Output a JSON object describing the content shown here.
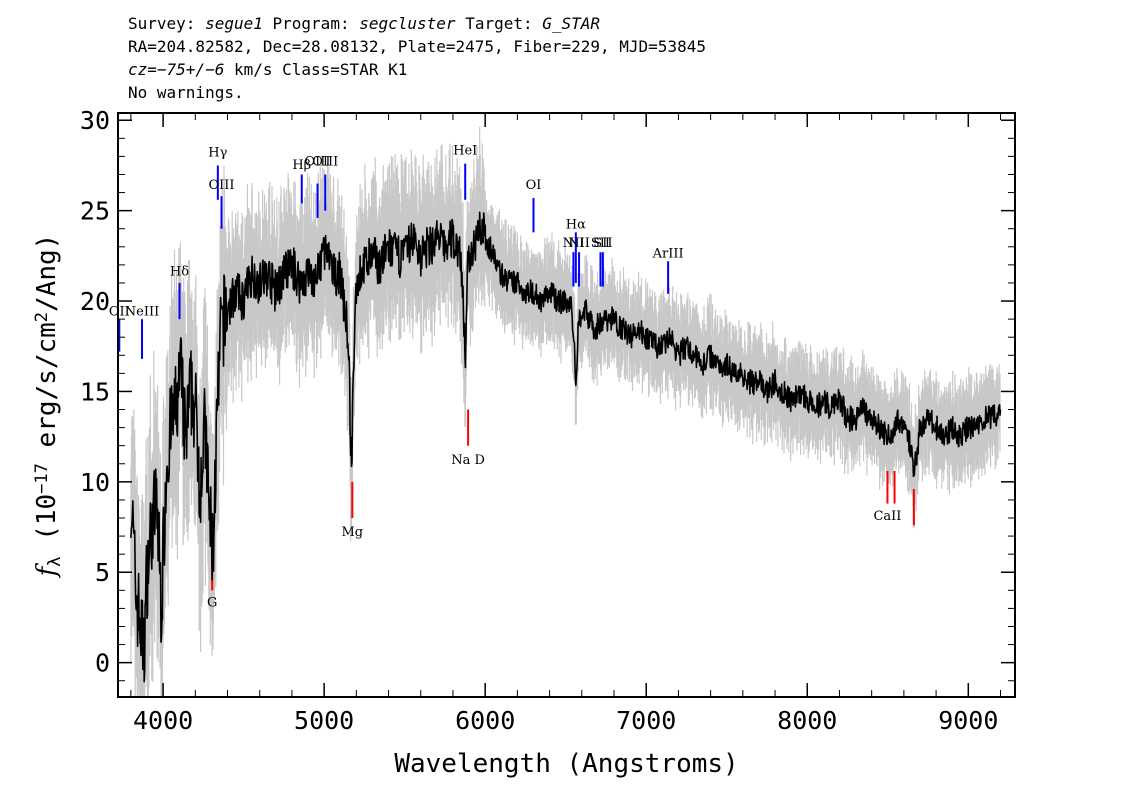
{
  "header": {
    "line1": {
      "survey_label": "Survey:",
      "survey": "segue1",
      "program_label": "Program:",
      "program": "segcluster",
      "target_label": "Target:",
      "target": "G_STAR"
    },
    "line2": "RA=204.82582, Dec=28.08132, Plate=2475, Fiber=229, MJD=53845",
    "line3": {
      "cz_label": "cz",
      "cz_value": "=−75+/−6",
      "cz_rest": " km/s Class=STAR K1"
    },
    "line4": "No warnings."
  },
  "chart_data": {
    "type": "line",
    "title": "",
    "xlabel": "Wavelength (Angstroms)",
    "ylabel_main": "f",
    "ylabel_sub": "λ",
    "ylabel_rest_1": " (10",
    "ylabel_exp": "−17",
    "ylabel_rest_2": " erg/s/cm",
    "ylabel_exp2": "2",
    "ylabel_rest_3": "/Ang)",
    "xlim": [
      3720,
      9290
    ],
    "ylim": [
      -1.9,
      30.4
    ],
    "x_ticks": [
      4000,
      5000,
      6000,
      7000,
      8000,
      9000
    ],
    "x_tick_labels": [
      "4000",
      "5000",
      "6000",
      "7000",
      "8000",
      "9000"
    ],
    "y_ticks": [
      0,
      5,
      10,
      15,
      20,
      25,
      30
    ],
    "y_tick_labels": [
      "0",
      "5",
      "10",
      "15",
      "20",
      "25",
      "30"
    ],
    "colors": {
      "flux": "#000000",
      "error_band": "#c8c8c8",
      "emission": "#0000ff",
      "absorption": "#ff0000"
    },
    "series": [
      {
        "x": [
          3800,
          3830,
          3860,
          3880,
          3900,
          3930,
          3960,
          3990,
          4020,
          4050,
          4080,
          4110,
          4140,
          4170,
          4200,
          4230,
          4260,
          4290,
          4310,
          4330,
          4360,
          4400,
          4450,
          4500,
          4550,
          4600,
          4650,
          4700,
          4750,
          4800,
          4850,
          4900,
          4950,
          5000,
          5050,
          5100,
          5150,
          5170,
          5185,
          5200,
          5250,
          5300,
          5350,
          5400,
          5450,
          5500,
          5550,
          5600,
          5650,
          5700,
          5750,
          5800,
          5850,
          5880,
          5892,
          5905,
          5930,
          5960,
          6000,
          6050,
          6100,
          6150,
          6200,
          6250,
          6300,
          6350,
          6400,
          6450,
          6500,
          6540,
          6563,
          6580,
          6620,
          6680,
          6750,
          6800,
          6850,
          6900,
          6950,
          7000,
          7050,
          7100,
          7150,
          7200,
          7250,
          7300,
          7350,
          7400,
          7450,
          7500,
          7550,
          7600,
          7650,
          7700,
          7750,
          7800,
          7850,
          7900,
          7950,
          8000,
          8050,
          8100,
          8150,
          8200,
          8250,
          8300,
          8350,
          8400,
          8450,
          8498,
          8542,
          8580,
          8620,
          8662,
          8700,
          8750,
          8800,
          8850,
          8900,
          8950,
          9000,
          9050,
          9100,
          9150,
          9200
        ],
        "y": [
          9.5,
          4.0,
          2.0,
          0.5,
          5.0,
          7.5,
          9.0,
          3.0,
          11.0,
          13.0,
          14.0,
          16.0,
          12.0,
          15.0,
          14.0,
          10.0,
          13.0,
          8.0,
          6.0,
          12.0,
          18.5,
          19.5,
          20.5,
          20.0,
          21.5,
          21.0,
          21.5,
          20.5,
          21.5,
          22.0,
          21.0,
          21.5,
          21.0,
          23.0,
          21.5,
          21.5,
          18.0,
          10.5,
          17.0,
          21.0,
          22.0,
          22.5,
          22.0,
          23.0,
          22.5,
          22.5,
          23.5,
          22.5,
          23.0,
          23.5,
          23.0,
          23.5,
          22.5,
          16.5,
          22.0,
          22.5,
          23.0,
          24.5,
          23.5,
          22.5,
          21.5,
          21.0,
          21.0,
          20.5,
          20.5,
          20.0,
          20.5,
          20.0,
          20.0,
          19.5,
          15.5,
          19.0,
          19.5,
          18.5,
          19.0,
          19.0,
          18.5,
          18.0,
          18.5,
          18.0,
          17.5,
          17.5,
          18.0,
          17.0,
          17.5,
          17.0,
          16.5,
          17.0,
          16.5,
          16.5,
          16.0,
          16.0,
          15.5,
          15.5,
          15.0,
          15.5,
          15.0,
          14.5,
          15.0,
          14.5,
          14.0,
          14.5,
          14.0,
          14.5,
          13.5,
          13.5,
          14.0,
          13.5,
          13.0,
          12.5,
          13.0,
          13.5,
          13.0,
          10.5,
          13.0,
          13.5,
          13.0,
          12.5,
          13.0,
          12.5,
          13.0,
          13.0,
          13.5,
          13.5,
          14.0
        ]
      }
    ],
    "line_markers": [
      {
        "label": "OII",
        "wave": 3728,
        "y0": 17.2,
        "y1": 19.0,
        "kind": "emission",
        "label_y": 19.2
      },
      {
        "label": "NeIII",
        "wave": 3869,
        "y0": 16.8,
        "y1": 19.0,
        "kind": "emission",
        "label_y": 19.2
      },
      {
        "label": "Hδ",
        "wave": 4102,
        "y0": 19.0,
        "y1": 21.0,
        "kind": "emission",
        "label_y": 21.4
      },
      {
        "label": "Hγ",
        "wave": 4340,
        "y0": 25.6,
        "y1": 27.5,
        "kind": "emission",
        "label_y": 28.0
      },
      {
        "label": "OIII",
        "wave": 4363,
        "y0": 24.0,
        "y1": 25.8,
        "kind": "emission",
        "label_y": 26.2
      },
      {
        "label": "Hβ",
        "wave": 4861,
        "y0": 25.4,
        "y1": 27.0,
        "kind": "emission",
        "label_y": 27.3
      },
      {
        "label": "OIII",
        "wave": 4959,
        "y0": 24.6,
        "y1": 26.5,
        "kind": "emission",
        "label_y": 27.5
      },
      {
        "label": "OIII",
        "wave": 5007,
        "y0": 25.0,
        "y1": 27.0,
        "kind": "emission",
        "label_y": 27.5
      },
      {
        "label": "HeI",
        "wave": 5876,
        "y0": 25.6,
        "y1": 27.6,
        "kind": "emission",
        "label_y": 28.1
      },
      {
        "label": "OI",
        "wave": 6300,
        "y0": 23.8,
        "y1": 25.7,
        "kind": "emission",
        "label_y": 26.2
      },
      {
        "label": "NII",
        "wave": 6548,
        "y0": 20.8,
        "y1": 22.7,
        "kind": "emission",
        "label_y": 23.0
      },
      {
        "label": "Hα",
        "wave": 6563,
        "y0": 21.0,
        "y1": 23.8,
        "kind": "emission",
        "label_y": 24.0
      },
      {
        "label": "NII",
        "wave": 6583,
        "y0": 20.8,
        "y1": 22.7,
        "kind": "emission",
        "label_y": 23.0
      },
      {
        "label": "SII",
        "wave": 6716,
        "y0": 20.8,
        "y1": 22.7,
        "kind": "emission",
        "label_y": 23.0
      },
      {
        "label": "SII",
        "wave": 6731,
        "y0": 20.8,
        "y1": 22.7,
        "kind": "emission",
        "label_y": 23.0
      },
      {
        "label": "ArIII",
        "wave": 7136,
        "y0": 20.4,
        "y1": 22.2,
        "kind": "emission",
        "label_y": 22.4
      },
      {
        "label": "G",
        "wave": 4305,
        "y0": 4.0,
        "y1": 6.0,
        "kind": "absorption",
        "label_y": 3.1
      },
      {
        "label": "Mg",
        "wave": 5175,
        "y0": 8.0,
        "y1": 10.0,
        "kind": "absorption",
        "label_y": 7.0
      },
      {
        "label": "Na D",
        "wave": 5894,
        "y0": 12.0,
        "y1": 14.0,
        "kind": "absorption",
        "label_y": 11.0
      },
      {
        "label": "CaII",
        "wave": 8498,
        "y0": 8.8,
        "y1": 10.6,
        "kind": "absorption",
        "label_y": 7.9
      },
      {
        "label": "CaII",
        "wave": 8542,
        "y0": 8.8,
        "y1": 10.6,
        "kind": "absorption",
        "label_y": ""
      },
      {
        "label": "CaII",
        "wave": 8662,
        "y0": 7.6,
        "y1": 9.6,
        "kind": "absorption",
        "label_y": ""
      }
    ]
  }
}
